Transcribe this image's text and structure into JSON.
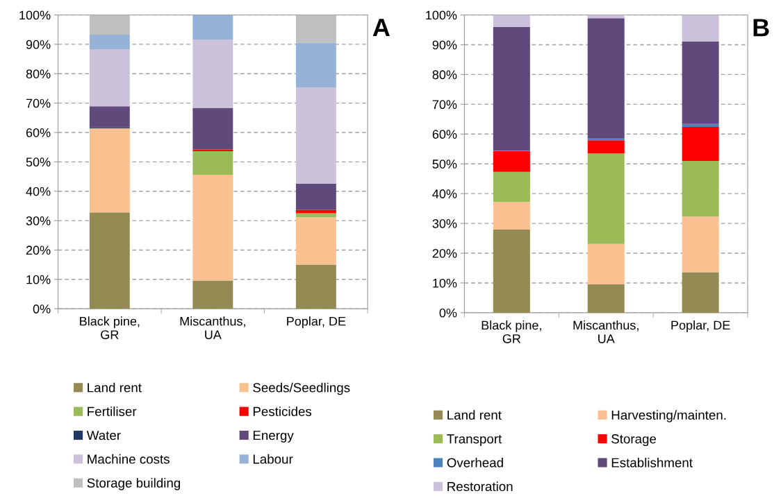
{
  "chart_data": [
    {
      "type": "bar",
      "stacked": true,
      "annotations": [
        "A"
      ],
      "categories": [
        "Black pine,\nGR",
        "Miscanthus,\nUA",
        "Poplar, DE"
      ],
      "ylim": [
        0,
        100
      ],
      "yticks": [
        {
          "value": 0,
          "label": "0%"
        },
        {
          "value": 10,
          "label": "10%"
        },
        {
          "value": 20,
          "label": "20%"
        },
        {
          "value": 30,
          "label": "30%"
        },
        {
          "value": 40,
          "label": "40%"
        },
        {
          "value": 50,
          "label": "50%"
        },
        {
          "value": 60,
          "label": "60%"
        },
        {
          "value": 70,
          "label": "70%"
        },
        {
          "value": 80,
          "label": "80%"
        },
        {
          "value": 90,
          "label": "90%"
        },
        {
          "value": 100,
          "label": "100%"
        }
      ],
      "grid": "y",
      "legend": "bottom",
      "series": [
        {
          "name": "Land rent",
          "color": "#948a54",
          "values": [
            32.8,
            9.6,
            15.0
          ]
        },
        {
          "name": "Seeds/Seedlings",
          "color": "#fac090",
          "values": [
            28.6,
            36.0,
            16.1
          ]
        },
        {
          "name": "Fertiliser",
          "color": "#9bbb59",
          "values": [
            0,
            8.0,
            1.4
          ]
        },
        {
          "name": "Pesticides",
          "color": "#ff0000",
          "values": [
            0,
            0.6,
            1.1
          ]
        },
        {
          "name": "Water",
          "color": "#1f3864",
          "values": [
            0.3,
            0,
            0
          ]
        },
        {
          "name": "Energy",
          "color": "#604a7b",
          "values": [
            7.2,
            14.2,
            8.9
          ]
        },
        {
          "name": "Machine costs",
          "color": "#ccc1da",
          "values": [
            19.4,
            23.2,
            32.8
          ]
        },
        {
          "name": "Labour",
          "color": "#95b3d7",
          "values": [
            5.0,
            8.4,
            15.2
          ]
        },
        {
          "name": "Storage building",
          "color": "#bfbfbf",
          "values": [
            6.7,
            0,
            9.5
          ]
        }
      ]
    },
    {
      "type": "bar",
      "stacked": true,
      "annotations": [
        "B"
      ],
      "categories": [
        "Black pine,\nGR",
        "Miscanthus,\nUA",
        "Poplar, DE"
      ],
      "ylim": [
        0,
        100
      ],
      "yticks": [
        {
          "value": 0,
          "label": "0%"
        },
        {
          "value": 10,
          "label": "10%"
        },
        {
          "value": 20,
          "label": "20%"
        },
        {
          "value": 30,
          "label": "30%"
        },
        {
          "value": 40,
          "label": "40%"
        },
        {
          "value": 50,
          "label": "50%"
        },
        {
          "value": 60,
          "label": "60%"
        },
        {
          "value": 70,
          "label": "70%"
        },
        {
          "value": 80,
          "label": "80%"
        },
        {
          "value": 90,
          "label": "90%"
        },
        {
          "value": 100,
          "label": "100%"
        }
      ],
      "grid": "y",
      "legend": "bottom",
      "series": [
        {
          "name": "Land rent",
          "color": "#948a54",
          "values": [
            27.9,
            9.6,
            13.6
          ]
        },
        {
          "name": "Harvesting/mainten.",
          "color": "#fac090",
          "values": [
            9.3,
            13.5,
            18.7
          ]
        },
        {
          "name": "Transport",
          "color": "#9bbb59",
          "values": [
            10.1,
            30.4,
            18.7
          ]
        },
        {
          "name": "Storage",
          "color": "#ff0000",
          "values": [
            7.0,
            4.4,
            11.4
          ]
        },
        {
          "name": "Overhead",
          "color": "#4f81bd",
          "values": [
            0.2,
            0.6,
            1.0
          ]
        },
        {
          "name": "Establishment",
          "color": "#604a7b",
          "values": [
            41.5,
            40.4,
            27.7
          ]
        },
        {
          "name": "Restoration",
          "color": "#ccc1da",
          "values": [
            4.0,
            1.1,
            8.9
          ]
        }
      ]
    }
  ]
}
